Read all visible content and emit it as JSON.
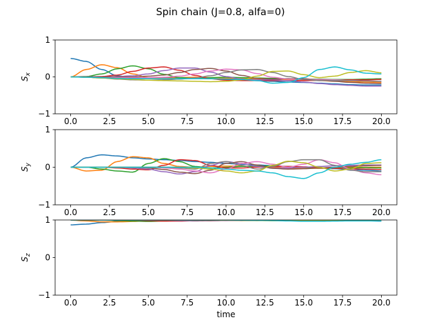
{
  "figure": {
    "title": "Spin chain (J=0.8, alfa=0)"
  },
  "colors": [
    "#1f77b4",
    "#ff7f0e",
    "#2ca02c",
    "#d62728",
    "#9467bd",
    "#8c564b",
    "#e377c2",
    "#7f7f7f",
    "#bcbd22",
    "#17becf"
  ],
  "chart_data": [
    {
      "type": "line",
      "ylabel": "S_x",
      "xlabel": "",
      "xlim": [
        -1,
        21
      ],
      "ylim": [
        -1,
        1
      ],
      "xticks": [
        0,
        2.5,
        5,
        7.5,
        10,
        12.5,
        15,
        17.5,
        20
      ],
      "xtick_labels": [
        "0.0",
        "2.5",
        "5.0",
        "7.5",
        "10.0",
        "12.5",
        "15.0",
        "17.5",
        "20.0"
      ],
      "yticks": [
        -1,
        0,
        1
      ],
      "ytick_labels": [
        "−1",
        "0",
        "1"
      ],
      "x": [
        0,
        1,
        2,
        3,
        4,
        5,
        6,
        7,
        8,
        9,
        10,
        11,
        12,
        13,
        14,
        15,
        16,
        17,
        18,
        19,
        20
      ],
      "series": [
        {
          "values": [
            0.5,
            0.42,
            0.2,
            0.03,
            -0.03,
            -0.03,
            -0.02,
            -0.02,
            -0.03,
            -0.05,
            -0.07,
            -0.09,
            -0.1,
            -0.12,
            -0.14,
            -0.15,
            -0.17,
            -0.19,
            -0.21,
            -0.22,
            -0.22
          ]
        },
        {
          "values": [
            0,
            0.2,
            0.33,
            0.25,
            0.08,
            -0.02,
            -0.04,
            -0.02,
            -0.01,
            -0.02,
            -0.04,
            -0.05,
            -0.05,
            -0.06,
            -0.07,
            -0.09,
            -0.1,
            -0.12,
            -0.13,
            -0.14,
            -0.15
          ]
        },
        {
          "values": [
            0,
            0.01,
            0.08,
            0.22,
            0.3,
            0.22,
            0.07,
            -0.02,
            -0.04,
            -0.02,
            -0.01,
            -0.02,
            -0.03,
            -0.04,
            -0.05,
            -0.06,
            -0.06,
            -0.07,
            -0.07,
            -0.06,
            -0.05
          ]
        },
        {
          "values": [
            0,
            0,
            0.01,
            0.05,
            0.15,
            0.24,
            0.27,
            0.18,
            0.04,
            -0.05,
            -0.09,
            -0.1,
            -0.1,
            -0.1,
            -0.1,
            -0.1,
            -0.09,
            -0.09,
            -0.08,
            -0.08,
            -0.07
          ]
        },
        {
          "values": [
            0,
            0,
            0,
            0.01,
            0.03,
            0.08,
            0.17,
            0.24,
            0.24,
            0.13,
            0.01,
            -0.06,
            -0.08,
            -0.08,
            -0.1,
            -0.14,
            -0.18,
            -0.21,
            -0.23,
            -0.25,
            -0.25
          ]
        },
        {
          "values": [
            0,
            0,
            0,
            0,
            0,
            0.02,
            0.05,
            0.12,
            0.2,
            0.23,
            0.16,
            0.04,
            -0.04,
            -0.06,
            -0.05,
            -0.05,
            -0.08,
            -0.12,
            -0.15,
            -0.17,
            -0.18
          ]
        },
        {
          "values": [
            0,
            -0.01,
            -0.02,
            -0.02,
            -0.02,
            -0.02,
            -0.01,
            0.02,
            0.08,
            0.16,
            0.21,
            0.19,
            0.09,
            -0.01,
            -0.06,
            -0.07,
            -0.07,
            -0.08,
            -0.1,
            -0.11,
            -0.12
          ]
        },
        {
          "values": [
            0,
            -0.01,
            -0.03,
            -0.06,
            -0.08,
            -0.09,
            -0.08,
            -0.06,
            -0.03,
            0.03,
            0.12,
            0.19,
            0.2,
            0.12,
            0.01,
            -0.07,
            -0.1,
            -0.1,
            -0.1,
            -0.11,
            -0.12
          ]
        },
        {
          "values": [
            0,
            -0.01,
            -0.03,
            -0.05,
            -0.07,
            -0.09,
            -0.1,
            -0.11,
            -0.12,
            -0.13,
            -0.12,
            -0.08,
            0.02,
            0.15,
            0.16,
            0.06,
            -0.02,
            0.02,
            0.12,
            0.17,
            0.11
          ]
        },
        {
          "values": [
            0,
            -0.01,
            -0.02,
            -0.04,
            -0.05,
            -0.05,
            -0.05,
            -0.05,
            -0.05,
            -0.05,
            -0.06,
            -0.07,
            -0.1,
            -0.17,
            -0.15,
            -0.02,
            0.2,
            0.27,
            0.19,
            0.1,
            0.08
          ]
        }
      ]
    },
    {
      "type": "line",
      "ylabel": "S_y",
      "xlabel": "",
      "xlim": [
        -1,
        21
      ],
      "ylim": [
        -1,
        1
      ],
      "xticks": [
        0,
        2.5,
        5,
        7.5,
        10,
        12.5,
        15,
        17.5,
        20
      ],
      "xtick_labels": [
        "0.0",
        "2.5",
        "5.0",
        "7.5",
        "10.0",
        "12.5",
        "15.0",
        "17.5",
        "20.0"
      ],
      "yticks": [
        -1,
        0,
        1
      ],
      "ytick_labels": [
        "−1",
        "0",
        "1"
      ],
      "x": [
        0,
        1,
        2,
        3,
        4,
        5,
        6,
        7,
        8,
        9,
        10,
        11,
        12,
        13,
        14,
        15,
        16,
        17,
        18,
        19,
        20
      ],
      "series": [
        {
          "values": [
            0,
            0.25,
            0.33,
            0.3,
            0.25,
            0.22,
            0.2,
            0.18,
            0.15,
            0.13,
            0.1,
            0.08,
            0.06,
            0.04,
            0.02,
            0,
            -0.02,
            -0.04,
            -0.06,
            -0.08,
            -0.1
          ]
        },
        {
          "values": [
            0,
            -0.1,
            -0.08,
            0.15,
            0.28,
            0.25,
            0.1,
            0.02,
            0,
            0.02,
            0.03,
            0.03,
            0.02,
            0,
            -0.02,
            -0.03,
            -0.03,
            -0.02,
            0,
            0,
            0
          ]
        },
        {
          "values": [
            0,
            0,
            -0.05,
            -0.1,
            -0.13,
            0.1,
            0.23,
            0.15,
            0.02,
            -0.02,
            0,
            0.02,
            0.03,
            0.03,
            0.02,
            0,
            -0.02,
            -0.03,
            -0.02,
            -0.01,
            -0.02
          ]
        },
        {
          "values": [
            0,
            0,
            0,
            -0.02,
            -0.05,
            -0.07,
            0.05,
            0.2,
            0.18,
            0.05,
            -0.02,
            -0.02,
            0,
            0.02,
            0.02,
            0.01,
            -0.01,
            -0.03,
            -0.04,
            -0.05,
            -0.06
          ]
        },
        {
          "values": [
            0,
            0,
            0,
            0,
            -0.02,
            -0.05,
            -0.12,
            -0.18,
            -0.12,
            0.05,
            0.15,
            0.1,
            0.02,
            -0.02,
            -0.02,
            0,
            0.02,
            0.04,
            0.05,
            0.06,
            0.06
          ]
        },
        {
          "values": [
            0,
            0,
            0,
            0,
            0,
            -0.02,
            -0.06,
            -0.13,
            -0.17,
            -0.08,
            0.1,
            0.15,
            0.06,
            -0.03,
            -0.05,
            -0.04,
            -0.02,
            0,
            0.02,
            0.04,
            0.05
          ]
        },
        {
          "values": [
            0,
            0,
            0,
            0,
            0,
            0,
            -0.02,
            -0.05,
            -0.1,
            -0.15,
            -0.05,
            0.1,
            0.15,
            0.08,
            0,
            0.08,
            0.2,
            0.12,
            -0.05,
            -0.15,
            -0.2
          ]
        },
        {
          "values": [
            0,
            0,
            0,
            0,
            0,
            0,
            0,
            -0.02,
            -0.05,
            0.1,
            0.15,
            0.05,
            -0.05,
            0.02,
            0.15,
            0.2,
            0.2,
            0.05,
            -0.08,
            -0.12,
            -0.12
          ]
        },
        {
          "values": [
            0,
            0,
            0,
            0,
            0,
            0,
            0,
            0,
            -0.02,
            -0.05,
            -0.1,
            -0.15,
            -0.1,
            0.05,
            0.16,
            0.12,
            0,
            -0.1,
            -0.05,
            0.1,
            0.12
          ]
        },
        {
          "values": [
            0,
            0,
            0,
            0,
            0,
            0,
            0,
            0,
            0,
            -0.02,
            -0.05,
            -0.08,
            -0.1,
            -0.15,
            -0.25,
            -0.3,
            -0.15,
            0,
            0.08,
            0.13,
            0.2
          ]
        }
      ]
    },
    {
      "type": "line",
      "ylabel": "S_z",
      "xlabel": "time",
      "xlim": [
        -1,
        21
      ],
      "ylim": [
        -1,
        1
      ],
      "xticks": [
        0,
        2.5,
        5,
        7.5,
        10,
        12.5,
        15,
        17.5,
        20
      ],
      "xtick_labels": [
        "0.0",
        "2.5",
        "5.0",
        "7.5",
        "10.0",
        "12.5",
        "15.0",
        "17.5",
        "20.0"
      ],
      "yticks": [
        -1,
        0,
        1
      ],
      "ytick_labels": [
        "−1",
        "0",
        "1"
      ],
      "x": [
        0,
        1,
        2,
        3,
        4,
        5,
        6,
        7,
        8,
        9,
        10,
        11,
        12,
        13,
        14,
        15,
        16,
        17,
        18,
        19,
        20
      ],
      "series": [
        {
          "values": [
            0.87,
            0.89,
            0.93,
            0.96,
            0.97,
            0.98,
            0.985,
            0.99,
            0.99,
            0.99,
            0.99,
            0.99,
            0.99,
            0.99,
            0.99,
            0.99,
            0.99,
            0.98,
            0.98,
            0.98,
            0.97
          ]
        },
        {
          "values": [
            0.995,
            0.975,
            0.95,
            0.95,
            0.96,
            0.98,
            0.99,
            0.995,
            1,
            1,
            1,
            1,
            1,
            1,
            1,
            1,
            1,
            1,
            1,
            0.995,
            0.99
          ]
        },
        {
          "values": [
            1,
            1,
            0.995,
            0.985,
            0.97,
            0.96,
            0.97,
            0.985,
            0.995,
            1,
            1,
            1,
            1,
            1,
            1,
            1,
            1,
            1,
            1,
            1,
            1
          ]
        },
        {
          "values": [
            1,
            1,
            1,
            1,
            0.995,
            0.98,
            0.97,
            0.97,
            0.98,
            0.995,
            1,
            1,
            1,
            1,
            1,
            1,
            1,
            1,
            1,
            1,
            1
          ]
        },
        {
          "values": [
            1,
            1,
            1,
            1,
            1,
            1,
            0.995,
            0.985,
            0.975,
            0.98,
            0.99,
            1,
            1,
            1,
            1,
            1,
            1,
            1,
            1,
            1,
            1
          ]
        },
        {
          "values": [
            1,
            1,
            1,
            1,
            1,
            1,
            1,
            0.995,
            0.985,
            0.98,
            0.985,
            0.995,
            1,
            1,
            1,
            1,
            1,
            1,
            1,
            1,
            1
          ]
        },
        {
          "values": [
            1,
            1,
            1,
            1,
            1,
            1,
            1,
            1,
            0.995,
            0.99,
            0.985,
            0.985,
            0.99,
            0.995,
            1,
            1,
            1,
            1,
            1,
            1,
            1
          ]
        },
        {
          "values": [
            1,
            1,
            1,
            1,
            1,
            1,
            1,
            1,
            1,
            0.995,
            0.99,
            0.985,
            0.985,
            0.99,
            0.995,
            1,
            1,
            1,
            1,
            1,
            1
          ]
        },
        {
          "values": [
            1,
            1,
            1,
            1,
            1,
            1,
            1,
            1,
            1,
            1,
            0.995,
            0.99,
            0.985,
            0.98,
            0.985,
            0.99,
            0.99,
            0.985,
            0.98,
            0.98,
            0.98
          ]
        },
        {
          "values": [
            1,
            1,
            1,
            1,
            1,
            1,
            1,
            1,
            1,
            1,
            1,
            0.995,
            0.99,
            0.985,
            0.975,
            0.965,
            0.965,
            0.97,
            0.975,
            0.975,
            0.975
          ]
        }
      ]
    }
  ]
}
